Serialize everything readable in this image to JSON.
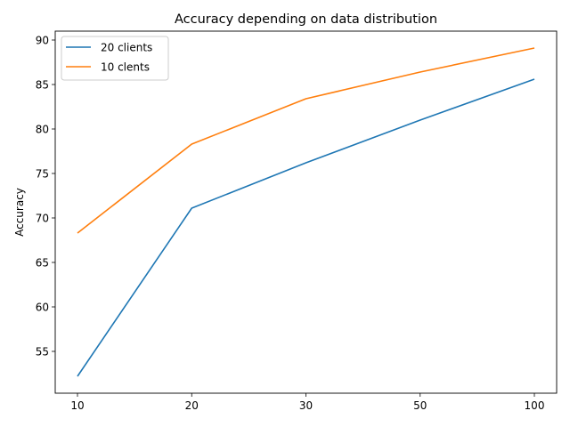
{
  "chart_data": {
    "type": "line",
    "title": "Accuracy depending on data distribution",
    "xlabel": "",
    "ylabel": "Accuracy",
    "categories": [
      "10",
      "20",
      "30",
      "50",
      "100"
    ],
    "series": [
      {
        "name": "20 clients",
        "color": "#1f77b4",
        "values": [
          52.2,
          71.1,
          76.2,
          81.0,
          85.6
        ]
      },
      {
        "name": "10 clents",
        "color": "#ff7f0e",
        "values": [
          68.3,
          78.3,
          83.4,
          86.4,
          89.1
        ]
      }
    ],
    "ylim": [
      50.3,
      91.0
    ],
    "yticks": [
      55,
      60,
      65,
      70,
      75,
      80,
      85,
      90
    ],
    "legend_position": "top-left",
    "grid": false
  }
}
